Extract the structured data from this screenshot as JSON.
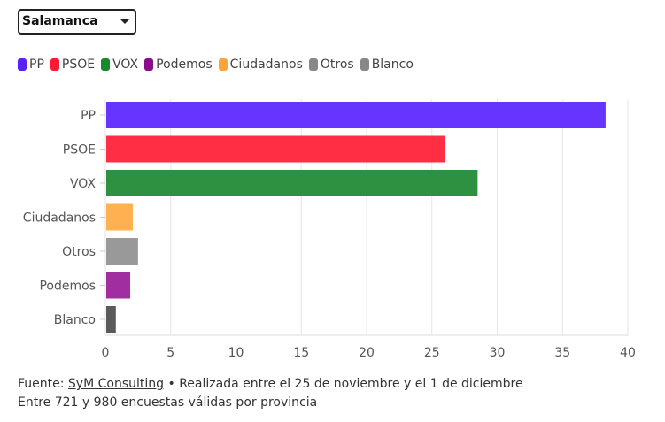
{
  "selector": {
    "value": "Salamanca"
  },
  "legend": [
    {
      "label": "PP",
      "color": "#5a1ffa"
    },
    {
      "label": "PSOE",
      "color": "#ff1a33"
    },
    {
      "label": "VOX",
      "color": "#178a2c"
    },
    {
      "label": "Podemos",
      "color": "#8a0e8a"
    },
    {
      "label": "Ciudadanos",
      "color": "#ffa339"
    },
    {
      "label": "Otros",
      "color": "#888888"
    },
    {
      "label": "Blanco",
      "color": "#888888"
    }
  ],
  "chart_data": {
    "type": "bar",
    "orientation": "horizontal",
    "categories": [
      "PP",
      "PSOE",
      "VOX",
      "Ciudadanos",
      "Otros",
      "Podemos",
      "Blanco"
    ],
    "values": [
      38.3,
      26.0,
      28.5,
      2.1,
      2.5,
      1.9,
      0.8
    ],
    "colors": [
      "#6633ff",
      "#ff2e45",
      "#2e9142",
      "#ffb050",
      "#999999",
      "#a02ea0",
      "#5a5a5a"
    ],
    "xlim": [
      0,
      40
    ],
    "xticks": [
      0,
      5,
      10,
      15,
      20,
      25,
      30,
      35,
      40
    ],
    "grid": true
  },
  "footer": {
    "source_prefix": "Fuente: ",
    "source_link": "SyM Consulting",
    "source_suffix": " • Realizada entre el 25 de noviembre y el 1 de diciembre",
    "line2": "Entre 721 y 980 encuestas válidas por provincia"
  }
}
